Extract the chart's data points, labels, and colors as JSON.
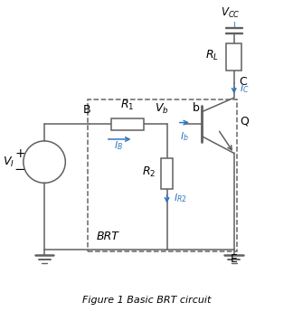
{
  "title": "Figure 1 Basic BRT circuit",
  "bg_color": "#ffffff",
  "line_color": "#606060",
  "blue_color": "#5599cc",
  "arrow_color": "#3377bb",
  "figsize": [
    3.24,
    3.55
  ],
  "dpi": 100,
  "xlim": [
    0,
    10
  ],
  "ylim": [
    0,
    10.5
  ]
}
